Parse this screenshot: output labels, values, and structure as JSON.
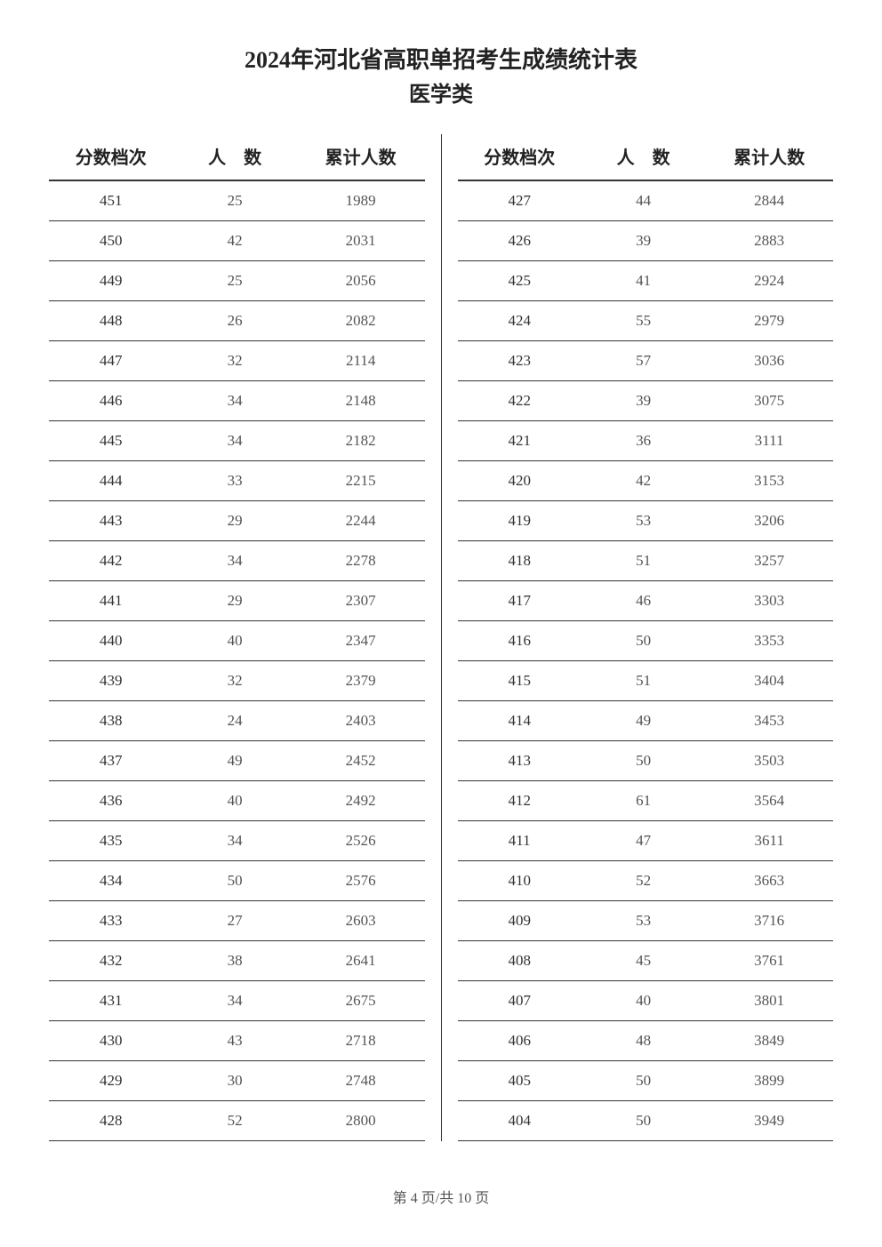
{
  "title": "2024年河北省高职单招考生成绩统计表",
  "subtitle": "医学类",
  "headers": {
    "score": "分数档次",
    "count": "人　数",
    "cumulative": "累计人数"
  },
  "left_rows": [
    {
      "score": "451",
      "count": "25",
      "cum": "1989"
    },
    {
      "score": "450",
      "count": "42",
      "cum": "2031"
    },
    {
      "score": "449",
      "count": "25",
      "cum": "2056"
    },
    {
      "score": "448",
      "count": "26",
      "cum": "2082"
    },
    {
      "score": "447",
      "count": "32",
      "cum": "2114"
    },
    {
      "score": "446",
      "count": "34",
      "cum": "2148"
    },
    {
      "score": "445",
      "count": "34",
      "cum": "2182"
    },
    {
      "score": "444",
      "count": "33",
      "cum": "2215"
    },
    {
      "score": "443",
      "count": "29",
      "cum": "2244"
    },
    {
      "score": "442",
      "count": "34",
      "cum": "2278"
    },
    {
      "score": "441",
      "count": "29",
      "cum": "2307"
    },
    {
      "score": "440",
      "count": "40",
      "cum": "2347"
    },
    {
      "score": "439",
      "count": "32",
      "cum": "2379"
    },
    {
      "score": "438",
      "count": "24",
      "cum": "2403"
    },
    {
      "score": "437",
      "count": "49",
      "cum": "2452"
    },
    {
      "score": "436",
      "count": "40",
      "cum": "2492"
    },
    {
      "score": "435",
      "count": "34",
      "cum": "2526"
    },
    {
      "score": "434",
      "count": "50",
      "cum": "2576"
    },
    {
      "score": "433",
      "count": "27",
      "cum": "2603"
    },
    {
      "score": "432",
      "count": "38",
      "cum": "2641"
    },
    {
      "score": "431",
      "count": "34",
      "cum": "2675"
    },
    {
      "score": "430",
      "count": "43",
      "cum": "2718"
    },
    {
      "score": "429",
      "count": "30",
      "cum": "2748"
    },
    {
      "score": "428",
      "count": "52",
      "cum": "2800"
    }
  ],
  "right_rows": [
    {
      "score": "427",
      "count": "44",
      "cum": "2844"
    },
    {
      "score": "426",
      "count": "39",
      "cum": "2883"
    },
    {
      "score": "425",
      "count": "41",
      "cum": "2924"
    },
    {
      "score": "424",
      "count": "55",
      "cum": "2979"
    },
    {
      "score": "423",
      "count": "57",
      "cum": "3036"
    },
    {
      "score": "422",
      "count": "39",
      "cum": "3075"
    },
    {
      "score": "421",
      "count": "36",
      "cum": "3111"
    },
    {
      "score": "420",
      "count": "42",
      "cum": "3153"
    },
    {
      "score": "419",
      "count": "53",
      "cum": "3206"
    },
    {
      "score": "418",
      "count": "51",
      "cum": "3257"
    },
    {
      "score": "417",
      "count": "46",
      "cum": "3303"
    },
    {
      "score": "416",
      "count": "50",
      "cum": "3353"
    },
    {
      "score": "415",
      "count": "51",
      "cum": "3404"
    },
    {
      "score": "414",
      "count": "49",
      "cum": "3453"
    },
    {
      "score": "413",
      "count": "50",
      "cum": "3503"
    },
    {
      "score": "412",
      "count": "61",
      "cum": "3564"
    },
    {
      "score": "411",
      "count": "47",
      "cum": "3611"
    },
    {
      "score": "410",
      "count": "52",
      "cum": "3663"
    },
    {
      "score": "409",
      "count": "53",
      "cum": "3716"
    },
    {
      "score": "408",
      "count": "45",
      "cum": "3761"
    },
    {
      "score": "407",
      "count": "40",
      "cum": "3801"
    },
    {
      "score": "406",
      "count": "48",
      "cum": "3849"
    },
    {
      "score": "405",
      "count": "50",
      "cum": "3899"
    },
    {
      "score": "404",
      "count": "50",
      "cum": "3949"
    }
  ],
  "footer": "第 4 页/共 10 页"
}
